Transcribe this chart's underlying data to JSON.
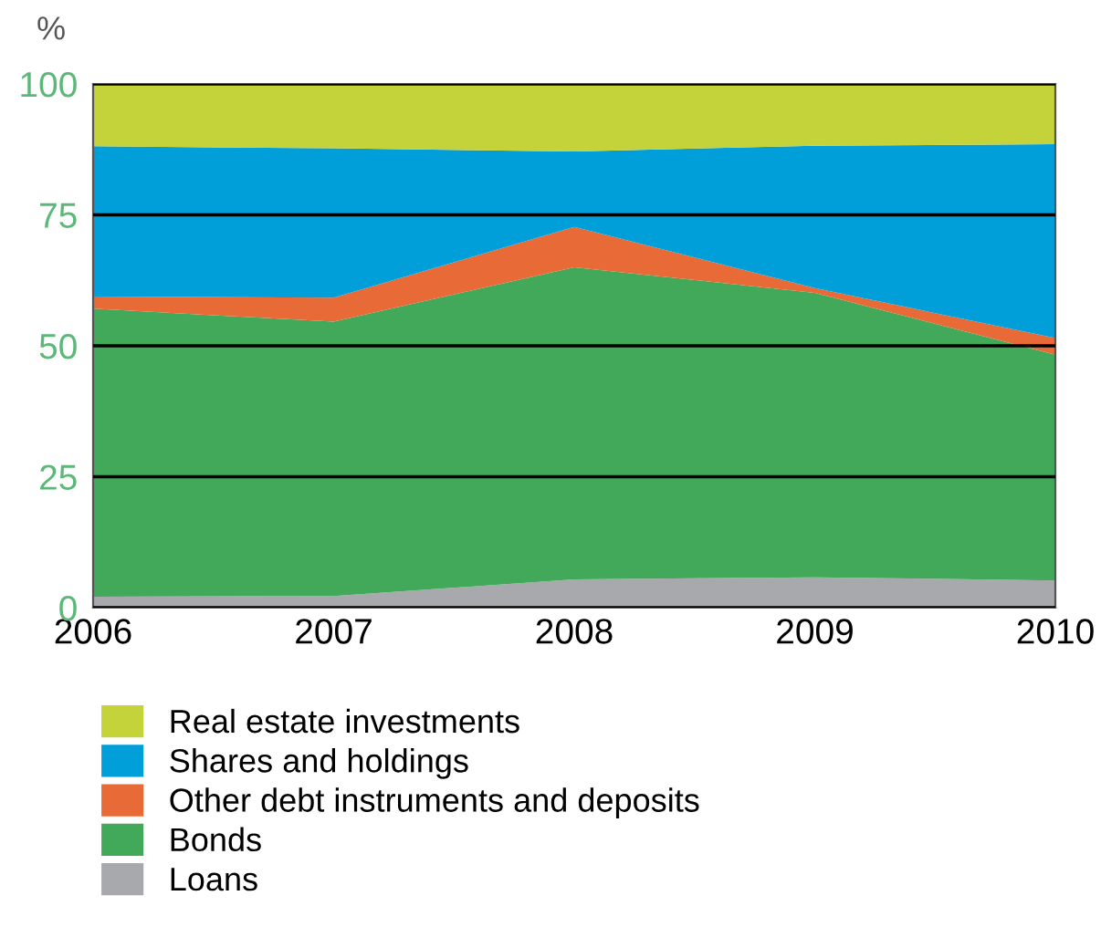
{
  "chart_data": {
    "type": "area",
    "stacked": true,
    "ylabel": "%",
    "x": [
      2006,
      2007,
      2008,
      2009,
      2010
    ],
    "xlim": [
      2006,
      2010
    ],
    "xticks": [
      2006,
      2007,
      2008,
      2009,
      2010
    ],
    "ylim": [
      0,
      100
    ],
    "yticks": [
      0,
      25,
      50,
      75,
      100
    ],
    "grid": "y",
    "legend": "bottom left",
    "series": [
      {
        "name": "Loans",
        "color": "#a7a9ac",
        "values": [
          2.1,
          2.2,
          5.4,
          5.8,
          5.2
        ]
      },
      {
        "name": "Bonds",
        "color": "#42a85a",
        "values": [
          55.0,
          52.4,
          59.6,
          54.3,
          43.1
        ]
      },
      {
        "name": "Other debt instruments and deposits",
        "color": "#e86a36",
        "values": [
          2.3,
          4.6,
          7.7,
          0.9,
          3.2
        ]
      },
      {
        "name": "Shares and holdings",
        "color": "#009fda",
        "values": [
          28.7,
          28.5,
          14.4,
          27.2,
          37.0
        ]
      },
      {
        "name": "Real estate investments",
        "color": "#c3d339",
        "values": [
          11.9,
          12.3,
          12.9,
          11.8,
          11.5
        ]
      }
    ]
  }
}
